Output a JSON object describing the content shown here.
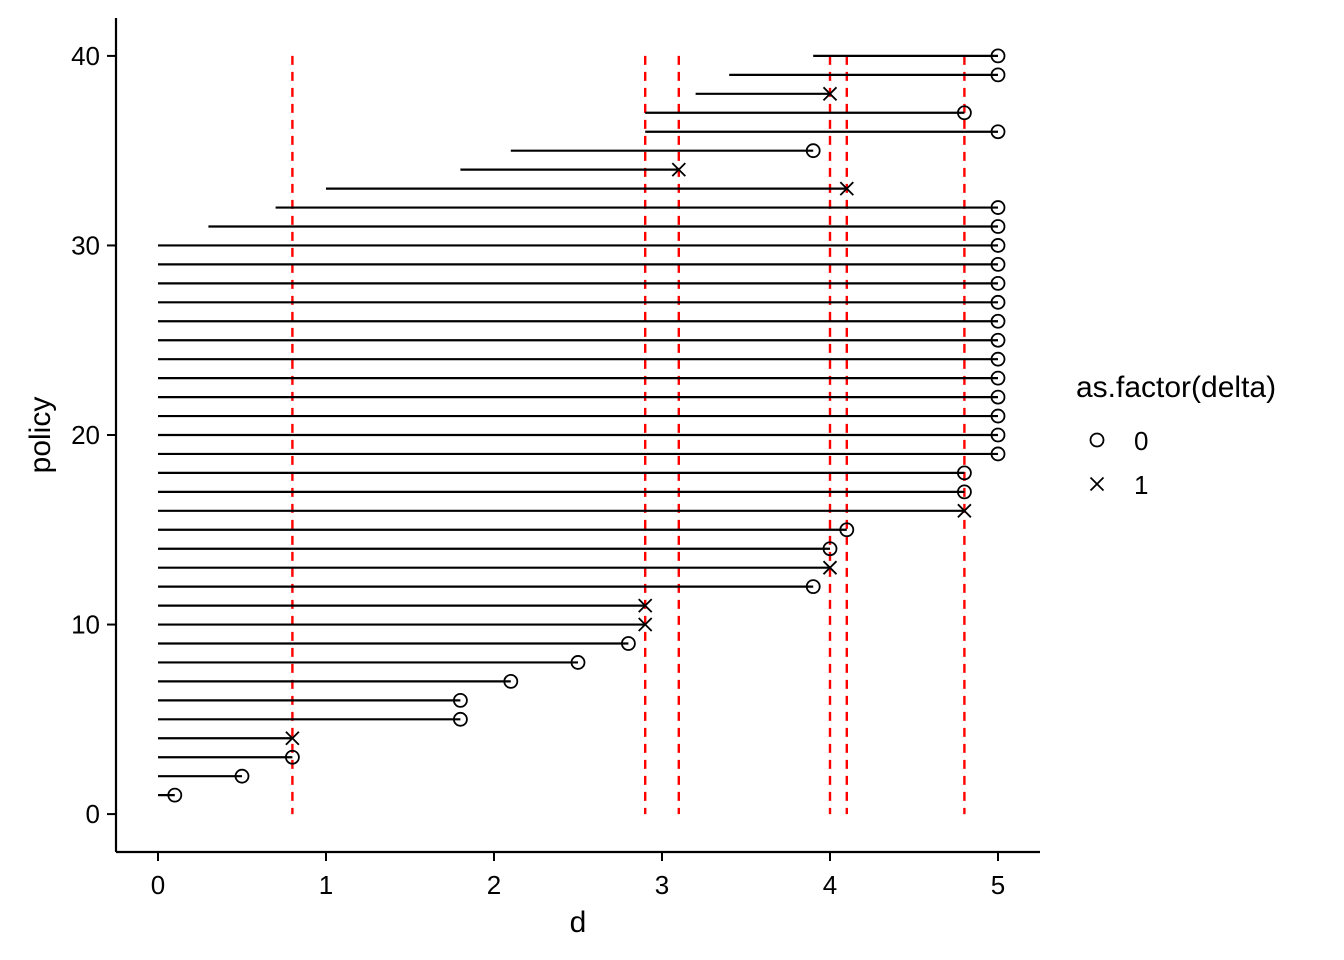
{
  "chart_data": {
    "type": "scatter",
    "xlabel": "d",
    "ylabel": "policy",
    "xlim": [
      -0.25,
      5.25
    ],
    "ylim": [
      -2,
      42
    ],
    "x_ticks": [
      "0",
      "1",
      "2",
      "3",
      "4",
      "5"
    ],
    "y_ticks": [
      "0",
      "10",
      "20",
      "30",
      "40"
    ],
    "grid": false,
    "legend": {
      "title": "as.factor(delta)",
      "placement": "right",
      "entries": [
        {
          "label": "0",
          "shape": "circle"
        },
        {
          "label": "1",
          "shape": "cross"
        }
      ]
    },
    "reference_lines": {
      "orientation": "vertical",
      "style": "dashed",
      "color": "#ff0000",
      "x": [
        0.8,
        2.9,
        3.1,
        4.0,
        4.1,
        4.8
      ]
    },
    "segment_color": "#000000",
    "policies": [
      {
        "policy": 1,
        "start": 0.0,
        "end": 0.1,
        "delta": 0
      },
      {
        "policy": 2,
        "start": 0.0,
        "end": 0.5,
        "delta": 0
      },
      {
        "policy": 3,
        "start": 0.0,
        "end": 0.8,
        "delta": 0
      },
      {
        "policy": 4,
        "start": 0.0,
        "end": 0.8,
        "delta": 1
      },
      {
        "policy": 5,
        "start": 0.0,
        "end": 1.8,
        "delta": 0
      },
      {
        "policy": 6,
        "start": 0.0,
        "end": 1.8,
        "delta": 0
      },
      {
        "policy": 7,
        "start": 0.0,
        "end": 2.1,
        "delta": 0
      },
      {
        "policy": 8,
        "start": 0.0,
        "end": 2.5,
        "delta": 0
      },
      {
        "policy": 9,
        "start": 0.0,
        "end": 2.8,
        "delta": 0
      },
      {
        "policy": 10,
        "start": 0.0,
        "end": 2.9,
        "delta": 1
      },
      {
        "policy": 11,
        "start": 0.0,
        "end": 2.9,
        "delta": 1
      },
      {
        "policy": 12,
        "start": 0.0,
        "end": 3.9,
        "delta": 0
      },
      {
        "policy": 13,
        "start": 0.0,
        "end": 4.0,
        "delta": 1
      },
      {
        "policy": 14,
        "start": 0.0,
        "end": 4.0,
        "delta": 0
      },
      {
        "policy": 15,
        "start": 0.0,
        "end": 4.1,
        "delta": 0
      },
      {
        "policy": 16,
        "start": 0.0,
        "end": 4.8,
        "delta": 1
      },
      {
        "policy": 17,
        "start": 0.0,
        "end": 4.8,
        "delta": 0
      },
      {
        "policy": 18,
        "start": 0.0,
        "end": 4.8,
        "delta": 0
      },
      {
        "policy": 19,
        "start": 0.0,
        "end": 5.0,
        "delta": 0
      },
      {
        "policy": 20,
        "start": 0.0,
        "end": 5.0,
        "delta": 0
      },
      {
        "policy": 21,
        "start": 0.0,
        "end": 5.0,
        "delta": 0
      },
      {
        "policy": 22,
        "start": 0.0,
        "end": 5.0,
        "delta": 0
      },
      {
        "policy": 23,
        "start": 0.0,
        "end": 5.0,
        "delta": 0
      },
      {
        "policy": 24,
        "start": 0.0,
        "end": 5.0,
        "delta": 0
      },
      {
        "policy": 25,
        "start": 0.0,
        "end": 5.0,
        "delta": 0
      },
      {
        "policy": 26,
        "start": 0.0,
        "end": 5.0,
        "delta": 0
      },
      {
        "policy": 27,
        "start": 0.0,
        "end": 5.0,
        "delta": 0
      },
      {
        "policy": 28,
        "start": 0.0,
        "end": 5.0,
        "delta": 0
      },
      {
        "policy": 29,
        "start": 0.0,
        "end": 5.0,
        "delta": 0
      },
      {
        "policy": 30,
        "start": 0.0,
        "end": 5.0,
        "delta": 0
      },
      {
        "policy": 31,
        "start": 0.3,
        "end": 5.0,
        "delta": 0
      },
      {
        "policy": 32,
        "start": 0.7,
        "end": 5.0,
        "delta": 0
      },
      {
        "policy": 33,
        "start": 1.0,
        "end": 4.1,
        "delta": 1
      },
      {
        "policy": 34,
        "start": 1.8,
        "end": 3.1,
        "delta": 1
      },
      {
        "policy": 35,
        "start": 2.1,
        "end": 3.9,
        "delta": 0
      },
      {
        "policy": 36,
        "start": 2.9,
        "end": 5.0,
        "delta": 0
      },
      {
        "policy": 37,
        "start": 2.9,
        "end": 4.8,
        "delta": 0
      },
      {
        "policy": 38,
        "start": 3.2,
        "end": 4.0,
        "delta": 1
      },
      {
        "policy": 39,
        "start": 3.4,
        "end": 5.0,
        "delta": 0
      },
      {
        "policy": 40,
        "start": 3.9,
        "end": 5.0,
        "delta": 0
      }
    ]
  }
}
